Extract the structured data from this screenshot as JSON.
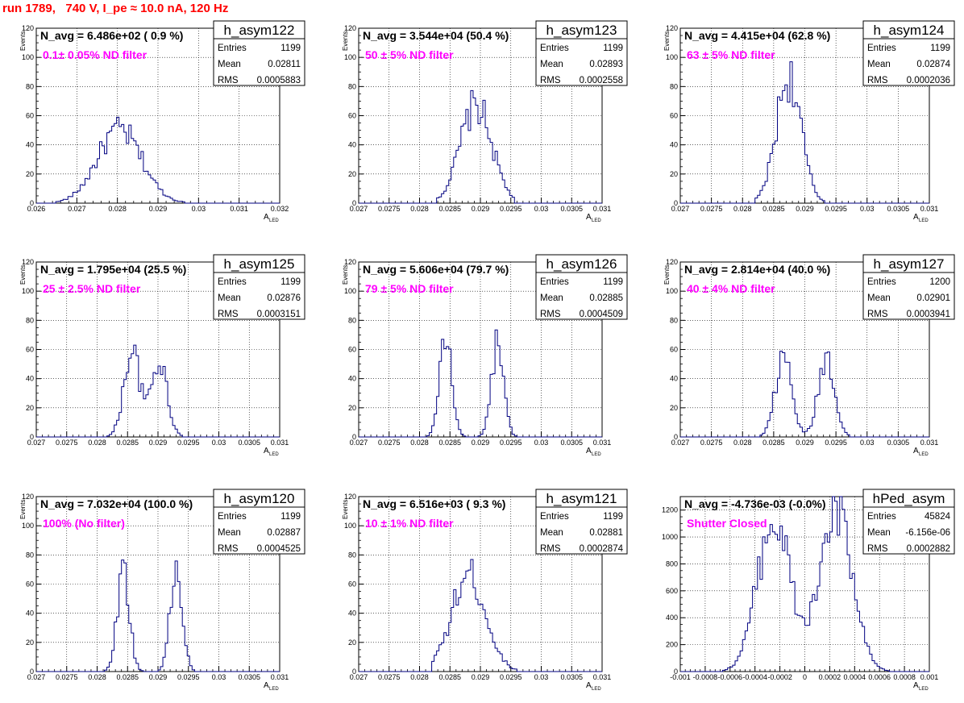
{
  "page": {
    "title": "run 1789,   740 V, I_pe ≈ 10.0 nA, 120 Hz"
  },
  "style": {
    "hist_color": "#000080",
    "title_color": "#ff0000",
    "filter_color": "#ff00ff"
  },
  "chart_data": [
    {
      "type": "histogram",
      "name": "h_asym122",
      "annotation": "N_avg = 6.486e+02 ( 0.9 %)",
      "filter_label": "0.1± 0.05% ND filter",
      "stats": {
        "Entries": "1199",
        "Mean": "0.02811",
        "RMS": "0.0005883"
      },
      "xlabel": "A",
      "xlabel_sub": "LED",
      "ylabel": "Events",
      "xlim": [
        0.026,
        0.032
      ],
      "ylim": [
        0,
        120
      ],
      "xticks": [
        "0.026",
        "0.027",
        "0.028",
        "0.029",
        "0.03",
        "0.031",
        "0.032"
      ],
      "yticks": [
        "0",
        "20",
        "40",
        "60",
        "80",
        "100",
        "120"
      ],
      "peaks": [
        {
          "mu": 0.02805,
          "sigma": 0.00055,
          "height": 50
        }
      ],
      "range": [
        0.02625,
        0.02985
      ]
    },
    {
      "type": "histogram",
      "name": "h_asym123",
      "annotation": "N_avg = 3.544e+04 (50.4 %)",
      "filter_label": "50 ± 5% ND filter",
      "stats": {
        "Entries": "1199",
        "Mean": "0.02893",
        "RMS": "0.0002558"
      },
      "xlabel": "A",
      "xlabel_sub": "LED",
      "ylabel": "Events",
      "xlim": [
        0.027,
        0.031
      ],
      "ylim": [
        0,
        120
      ],
      "xticks": [
        "0.027",
        "0.0275",
        "0.028",
        "0.0285",
        "0.029",
        "0.0295",
        "0.03",
        "0.0305",
        "0.031"
      ],
      "yticks": [
        "0",
        "20",
        "40",
        "60",
        "80",
        "100",
        "120"
      ],
      "peaks": [
        {
          "mu": 0.02893,
          "sigma": 0.00026,
          "height": 67
        }
      ],
      "range": [
        0.0283,
        0.02955
      ]
    },
    {
      "type": "histogram",
      "name": "h_asym124",
      "annotation": "N_avg = 4.415e+04 (62.8 %)",
      "filter_label": "63 ± 5% ND filter",
      "stats": {
        "Entries": "1199",
        "Mean": "0.02874",
        "RMS": "0.0002036"
      },
      "xlabel": "A",
      "xlabel_sub": "LED",
      "ylabel": "Events",
      "xlim": [
        0.027,
        0.031
      ],
      "ylim": [
        0,
        120
      ],
      "xticks": [
        "0.027",
        "0.0275",
        "0.028",
        "0.0285",
        "0.029",
        "0.0295",
        "0.03",
        "0.0305",
        "0.031"
      ],
      "yticks": [
        "0",
        "20",
        "40",
        "60",
        "80",
        "100",
        "120"
      ],
      "peaks": [
        {
          "mu": 0.02874,
          "sigma": 0.0002,
          "height": 86
        }
      ],
      "range": [
        0.0282,
        0.0293
      ]
    },
    {
      "type": "histogram",
      "name": "h_asym125",
      "annotation": "N_avg = 1.795e+04 (25.5 %)",
      "filter_label": "25 ± 2.5% ND filter",
      "stats": {
        "Entries": "1199",
        "Mean": "0.02876",
        "RMS": "0.0003151"
      },
      "xlabel": "A",
      "xlabel_sub": "LED",
      "ylabel": "Events",
      "xlim": [
        0.027,
        0.031
      ],
      "ylim": [
        0,
        120
      ],
      "xticks": [
        "0.027",
        "0.0275",
        "0.028",
        "0.0285",
        "0.029",
        "0.0295",
        "0.03",
        "0.0305",
        "0.031"
      ],
      "yticks": [
        "0",
        "20",
        "40",
        "60",
        "80",
        "100",
        "120"
      ],
      "peaks": [
        {
          "mu": 0.02857,
          "sigma": 0.00013,
          "height": 60
        },
        {
          "mu": 0.02902,
          "sigma": 0.00013,
          "height": 52
        }
      ],
      "range": [
        0.0281,
        0.0296
      ]
    },
    {
      "type": "histogram",
      "name": "h_asym126",
      "annotation": "N_avg = 5.606e+04 (79.7 %)",
      "filter_label": "79 ± 5% ND filter",
      "stats": {
        "Entries": "1199",
        "Mean": "0.02885",
        "RMS": "0.0004509"
      },
      "xlabel": "A",
      "xlabel_sub": "LED",
      "ylabel": "Events",
      "xlim": [
        0.027,
        0.031
      ],
      "ylim": [
        0,
        120
      ],
      "xticks": [
        "0.027",
        "0.0275",
        "0.028",
        "0.0285",
        "0.029",
        "0.0295",
        "0.03",
        "0.0305",
        "0.031"
      ],
      "yticks": [
        "0",
        "20",
        "40",
        "60",
        "80",
        "100",
        "120"
      ],
      "peaks": [
        {
          "mu": 0.02843,
          "sigma": 0.0001,
          "height": 68
        },
        {
          "mu": 0.02928,
          "sigma": 0.0001,
          "height": 64
        }
      ],
      "range": [
        0.0281,
        0.0296
      ]
    },
    {
      "type": "histogram",
      "name": "h_asym127",
      "annotation": "N_avg = 2.814e+04 (40.0 %)",
      "filter_label": "40 ± 4% ND filter",
      "stats": {
        "Entries": "1200",
        "Mean": "0.02901",
        "RMS": "0.0003941"
      },
      "xlabel": "A",
      "xlabel_sub": "LED",
      "ylabel": "Events",
      "xlim": [
        0.027,
        0.031
      ],
      "ylim": [
        0,
        120
      ],
      "xticks": [
        "0.027",
        "0.0275",
        "0.028",
        "0.0285",
        "0.029",
        "0.0295",
        "0.03",
        "0.0305",
        "0.031"
      ],
      "yticks": [
        "0",
        "20",
        "40",
        "60",
        "80",
        "100",
        "120"
      ],
      "peaks": [
        {
          "mu": 0.02866,
          "sigma": 0.00013,
          "height": 55
        },
        {
          "mu": 0.02935,
          "sigma": 0.00013,
          "height": 55
        }
      ],
      "range": [
        0.0282,
        0.0298
      ]
    },
    {
      "type": "histogram",
      "name": "h_asym120",
      "annotation": "N_avg = 7.032e+04 (100.0 %)",
      "filter_label": "100% (No filter)",
      "stats": {
        "Entries": "1199",
        "Mean": "0.02887",
        "RMS": "0.0004525"
      },
      "xlabel": "A",
      "xlabel_sub": "LED",
      "ylabel": "Events",
      "xlim": [
        0.027,
        0.031
      ],
      "ylim": [
        0,
        120
      ],
      "xticks": [
        "0.027",
        "0.0275",
        "0.028",
        "0.0285",
        "0.029",
        "0.0295",
        "0.03",
        "0.0305",
        "0.031"
      ],
      "yticks": [
        "0",
        "20",
        "40",
        "60",
        "80",
        "100",
        "120"
      ],
      "peaks": [
        {
          "mu": 0.02843,
          "sigma": 0.0001,
          "height": 70
        },
        {
          "mu": 0.0293,
          "sigma": 0.0001,
          "height": 68
        }
      ],
      "range": [
        0.0281,
        0.0296
      ]
    },
    {
      "type": "histogram",
      "name": "h_asym121",
      "annotation": "N_avg = 6.516e+03 ( 9.3 %)",
      "filter_label": "10 ± 1% ND filter",
      "stats": {
        "Entries": "1199",
        "Mean": "0.02881",
        "RMS": "0.0002874"
      },
      "xlabel": "A",
      "xlabel_sub": "LED",
      "ylabel": "Events",
      "xlim": [
        0.027,
        0.031
      ],
      "ylim": [
        0,
        120
      ],
      "xticks": [
        "0.027",
        "0.0275",
        "0.028",
        "0.0285",
        "0.029",
        "0.0295",
        "0.03",
        "0.0305",
        "0.031"
      ],
      "yticks": [
        "0",
        "20",
        "40",
        "60",
        "80",
        "100",
        "120"
      ],
      "peaks": [
        {
          "mu": 0.02881,
          "sigma": 0.00028,
          "height": 66
        }
      ],
      "range": [
        0.0282,
        0.0296
      ]
    },
    {
      "type": "histogram",
      "name": "hPed_asym",
      "annotation": "N_avg = -4.736e-03 (-0.0%)",
      "filter_label": "Shutter Closed",
      "stats": {
        "Entries": "45824",
        "Mean": "-6.156e-06",
        "RMS": "0.0002882"
      },
      "xlabel": "A",
      "xlabel_sub": "LED",
      "ylabel": "",
      "xlim": [
        -0.001,
        0.001
      ],
      "ylim": [
        0,
        1300
      ],
      "xticks": [
        "-0.001",
        "-0.0008",
        "-0.0006",
        "-0.0004",
        "-0.0002",
        "0",
        "0.0002",
        "0.0004",
        "0.0006",
        "0.0008",
        "0.001"
      ],
      "yticks": [
        "0",
        "200",
        "400",
        "600",
        "800",
        "1000",
        "1200"
      ],
      "peaks": [
        {
          "mu": -0.00025,
          "sigma": 0.00013,
          "height": 1150
        },
        {
          "mu": 0.00025,
          "sigma": 0.00013,
          "height": 1180
        }
      ],
      "range": [
        -0.0008,
        0.0008
      ]
    }
  ]
}
